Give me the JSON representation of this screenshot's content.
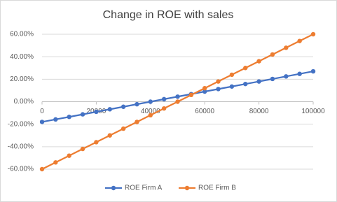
{
  "chart_data": {
    "type": "line",
    "title": "Change in ROE with sales",
    "x": [
      0,
      5000,
      10000,
      15000,
      20000,
      25000,
      30000,
      35000,
      40000,
      45000,
      50000,
      55000,
      60000,
      65000,
      70000,
      75000,
      80000,
      85000,
      90000,
      95000,
      100000
    ],
    "series": [
      {
        "name": "ROE Firm A",
        "color": "#4472c4",
        "values": [
          -18,
          -15.75,
          -13.5,
          -11.25,
          -9,
          -6.75,
          -4.5,
          -2.25,
          0,
          2.25,
          4.5,
          6.75,
          9,
          11.25,
          13.5,
          15.75,
          18,
          20.25,
          22.5,
          24.75,
          27
        ]
      },
      {
        "name": "ROE Firm B",
        "color": "#ed7d31",
        "values": [
          -60,
          -54,
          -48,
          -42,
          -36,
          -30,
          -24,
          -18,
          -12,
          -6,
          0,
          6,
          12,
          18,
          24,
          30,
          36,
          42,
          48,
          54,
          60
        ]
      }
    ],
    "xlim": [
      0,
      100000
    ],
    "xticks": [
      0,
      20000,
      40000,
      60000,
      80000,
      100000
    ],
    "ylim": [
      -60,
      60
    ],
    "yticks": [
      {
        "value": -60,
        "label": "-60.00%"
      },
      {
        "value": -40,
        "label": "-40.00%"
      },
      {
        "value": -20,
        "label": "-20.00%"
      },
      {
        "value": 0,
        "label": "0.00%"
      },
      {
        "value": 20,
        "label": "20.00%"
      },
      {
        "value": 40,
        "label": "40.00%"
      },
      {
        "value": 60,
        "label": "60.00%"
      }
    ],
    "grid": true,
    "legend": "bottom"
  }
}
